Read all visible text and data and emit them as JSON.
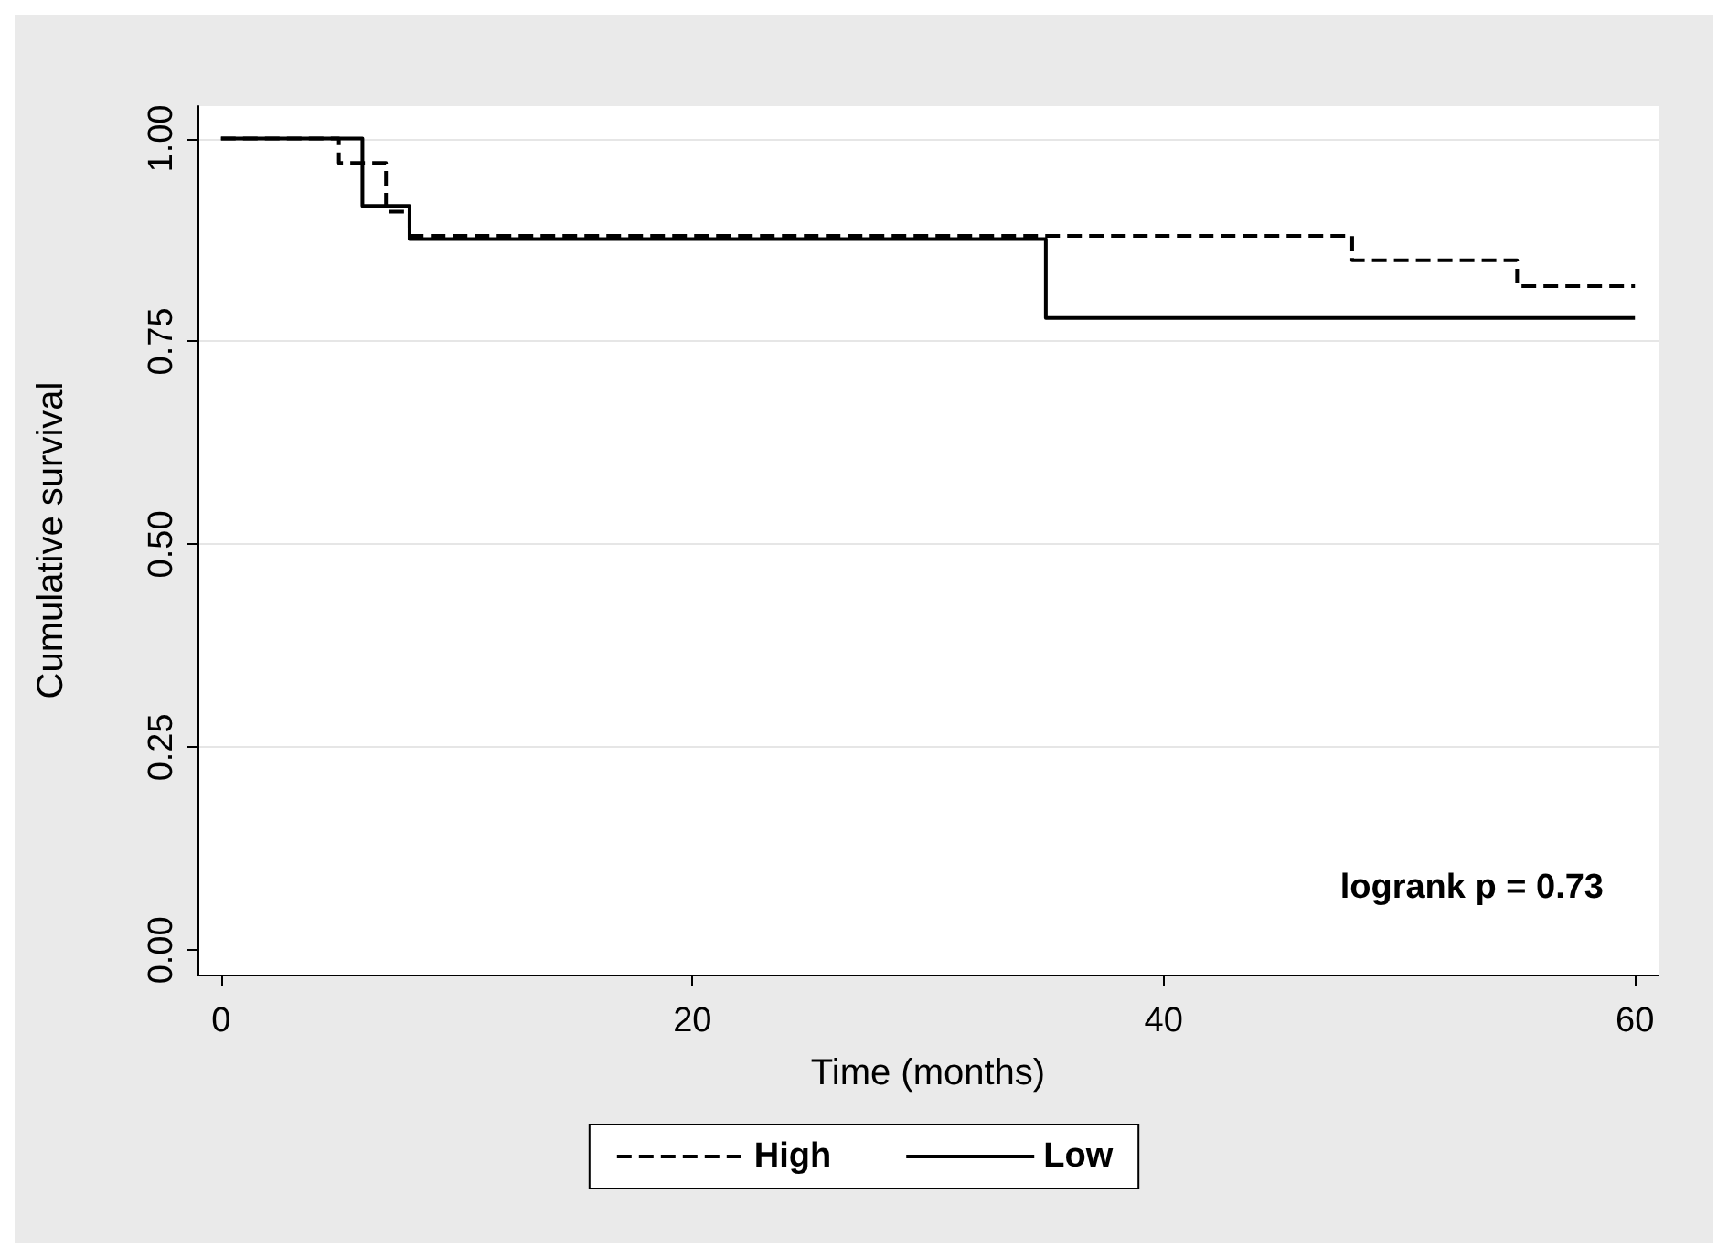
{
  "chart_data": {
    "type": "step",
    "xlabel": "Time (months)",
    "ylabel": "Cumulative survival",
    "xlim": [
      -1,
      61
    ],
    "xticks": [
      0,
      20,
      40,
      60
    ],
    "ylim": [
      -0.03,
      1.04
    ],
    "yticks": [
      {
        "value": 0,
        "label": "0.00"
      },
      {
        "value": 0.25,
        "label": "0.25"
      },
      {
        "value": 0.5,
        "label": "0.50"
      },
      {
        "value": 0.75,
        "label": "0.75"
      },
      {
        "value": 1,
        "label": "1.00"
      }
    ],
    "grid": "y",
    "legend": "bottom",
    "marker": "none",
    "annotations": [
      "logrank p = 0.73"
    ],
    "series": [
      {
        "name": "High",
        "color": "#000000",
        "line_style": "dashed",
        "x": [
          0,
          5,
          7,
          8,
          48,
          55,
          60
        ],
        "values": [
          1,
          0.97,
          0.91,
          0.88,
          0.85,
          0.818,
          0.818
        ]
      },
      {
        "name": "Low",
        "color": "#000000",
        "line_style": "solid",
        "x": [
          0,
          6,
          8,
          35,
          60
        ],
        "values": [
          1,
          0.917,
          0.876,
          0.779,
          0.779
        ]
      }
    ]
  }
}
